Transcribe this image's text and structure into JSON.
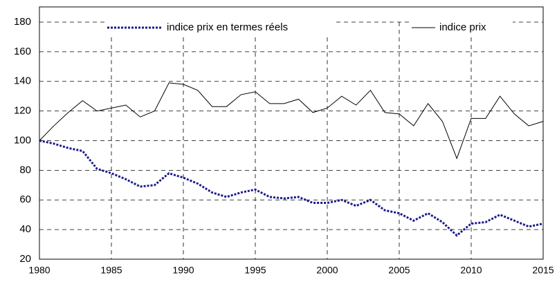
{
  "chart_data": {
    "type": "line",
    "x": [
      1980,
      1981,
      1982,
      1983,
      1984,
      1985,
      1986,
      1987,
      1988,
      1989,
      1990,
      1991,
      1992,
      1993,
      1994,
      1995,
      1996,
      1997,
      1998,
      1999,
      2000,
      2001,
      2002,
      2003,
      2004,
      2005,
      2006,
      2007,
      2008,
      2009,
      2010,
      2011,
      2012,
      2013,
      2014,
      2015
    ],
    "series": [
      {
        "name": "indice prix en termes réels",
        "color": "#1a1a8c",
        "dashed": true,
        "values": [
          100,
          98,
          95,
          93,
          81,
          78,
          74,
          69,
          70,
          78,
          75,
          71,
          65,
          62,
          65,
          67,
          62,
          61,
          62,
          58,
          58,
          60,
          56,
          60,
          53,
          51,
          46,
          51,
          45,
          36,
          44,
          45,
          50,
          46,
          42,
          44
        ]
      },
      {
        "name": "indice prix",
        "color": "#000000",
        "dashed": false,
        "values": [
          100,
          110,
          119,
          127,
          120,
          122,
          124,
          116,
          120,
          139,
          138,
          134,
          123,
          123,
          131,
          133,
          125,
          125,
          128,
          119,
          122,
          130,
          124,
          134,
          119,
          118,
          110,
          125,
          113,
          88,
          115,
          115,
          130,
          118,
          110,
          113
        ]
      }
    ],
    "xlim": [
      1980,
      2015
    ],
    "xticks": [
      1980,
      1985,
      1990,
      1995,
      2000,
      2005,
      2010,
      2015
    ],
    "ylim": [
      20,
      180
    ],
    "yticks": [
      20,
      40,
      60,
      80,
      100,
      120,
      140,
      160,
      180
    ],
    "grid": true,
    "legend": "top"
  }
}
